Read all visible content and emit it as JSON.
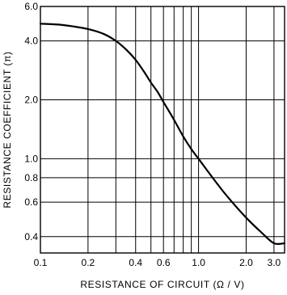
{
  "chart_data": {
    "type": "line",
    "xlabel": "RESISTANCE  OF  CIRCUIT  (Ω / V)",
    "ylabel": "RESISTANCE  COEFFICIENT  (π)",
    "x_scale": "log",
    "y_scale": "log",
    "xlim": [
      0.1,
      3.5
    ],
    "ylim": [
      0.33,
      6.0
    ],
    "x_ticks": [
      0.1,
      0.2,
      0.4,
      0.6,
      1.0,
      2.0,
      3.0
    ],
    "x_tick_labels": [
      "0.1",
      "0.2",
      "0.4",
      "0.6",
      "1.0",
      "2.0",
      "3.0"
    ],
    "y_ticks": [
      0.4,
      0.6,
      0.8,
      1.0,
      2.0,
      4.0,
      6.0
    ],
    "y_tick_labels": [
      "0.4",
      "0.6",
      "0.8",
      "1.0",
      "2.0",
      "4.0",
      "6.0"
    ],
    "x_grid": [
      0.1,
      0.2,
      0.3,
      0.4,
      0.5,
      0.6,
      0.7,
      0.8,
      0.9,
      1.0,
      2.0,
      3.0
    ],
    "y_grid": [
      0.4,
      0.6,
      0.8,
      1.0,
      2.0,
      4.0,
      6.0
    ],
    "grid": true,
    "series": [
      {
        "x": [
          0.1,
          0.13,
          0.16,
          0.2,
          0.25,
          0.3,
          0.35,
          0.4,
          0.45,
          0.5,
          0.55,
          0.6,
          0.65,
          0.7,
          0.8,
          0.9,
          1.0,
          1.2,
          1.5,
          2.0,
          2.5,
          3.0,
          3.5
        ],
        "y": [
          4.9,
          4.85,
          4.75,
          4.6,
          4.35,
          4.0,
          3.6,
          3.2,
          2.8,
          2.45,
          2.2,
          1.95,
          1.75,
          1.58,
          1.3,
          1.12,
          1.0,
          0.82,
          0.65,
          0.5,
          0.42,
          0.37,
          0.37
        ]
      }
    ]
  }
}
